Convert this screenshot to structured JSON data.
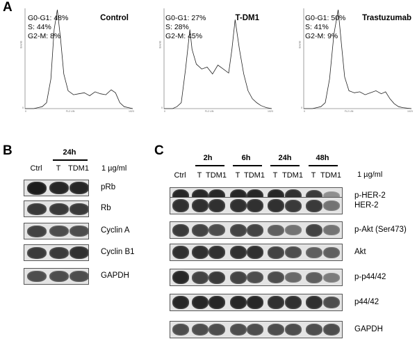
{
  "panels": {
    "a": "A",
    "b": "B",
    "c": "C"
  },
  "panel_a": {
    "histograms": [
      {
        "condition": "Control",
        "stats": [
          "G0-G1: 48%",
          "S: 44%",
          "G2-M: 8%"
        ],
        "y_axis_label": "Events",
        "x_axis_label": "FL2 LIN",
        "y_ticks": [
          "0"
        ],
        "x_ticks": [
          "0",
          "1023"
        ],
        "profile": [
          [
            0,
            0
          ],
          [
            8,
            0
          ],
          [
            12,
            1
          ],
          [
            16,
            2
          ],
          [
            20,
            6
          ],
          [
            24,
            30
          ],
          [
            27,
            80
          ],
          [
            30,
            100
          ],
          [
            33,
            70
          ],
          [
            36,
            35
          ],
          [
            40,
            18
          ],
          [
            45,
            14
          ],
          [
            50,
            15
          ],
          [
            55,
            16
          ],
          [
            60,
            13
          ],
          [
            65,
            17
          ],
          [
            70,
            15
          ],
          [
            75,
            14
          ],
          [
            80,
            19
          ],
          [
            84,
            16
          ],
          [
            88,
            6
          ],
          [
            92,
            2
          ],
          [
            96,
            1
          ],
          [
            100,
            0
          ]
        ]
      },
      {
        "condition": "T-DM1",
        "stats": [
          "G0-G1: 27%",
          "S: 28%",
          "G2-M: 45%"
        ],
        "y_axis_label": "Events",
        "x_axis_label": "FL2 LIN",
        "y_ticks": [
          "0"
        ],
        "x_ticks": [
          "0",
          "1023"
        ],
        "profile": [
          [
            0,
            0
          ],
          [
            8,
            0
          ],
          [
            12,
            2
          ],
          [
            16,
            6
          ],
          [
            20,
            40
          ],
          [
            24,
            80
          ],
          [
            26,
            60
          ],
          [
            30,
            45
          ],
          [
            35,
            40
          ],
          [
            40,
            42
          ],
          [
            45,
            35
          ],
          [
            50,
            44
          ],
          [
            55,
            40
          ],
          [
            60,
            36
          ],
          [
            63,
            60
          ],
          [
            66,
            90
          ],
          [
            70,
            60
          ],
          [
            74,
            35
          ],
          [
            78,
            18
          ],
          [
            82,
            10
          ],
          [
            86,
            6
          ],
          [
            90,
            3
          ],
          [
            95,
            1
          ],
          [
            100,
            0
          ]
        ]
      },
      {
        "condition": "Trastuzumab",
        "stats": [
          "G0-G1: 50%",
          "S: 41%",
          "G2-M: 9%"
        ],
        "y_axis_label": "Events",
        "x_axis_label": "FL2 LIN",
        "y_ticks": [
          "0"
        ],
        "x_ticks": [
          "0",
          "1023"
        ],
        "profile": [
          [
            0,
            0
          ],
          [
            8,
            0
          ],
          [
            12,
            1
          ],
          [
            16,
            2
          ],
          [
            20,
            6
          ],
          [
            24,
            30
          ],
          [
            28,
            75
          ],
          [
            32,
            100
          ],
          [
            35,
            65
          ],
          [
            38,
            32
          ],
          [
            42,
            18
          ],
          [
            47,
            16
          ],
          [
            52,
            17
          ],
          [
            57,
            14
          ],
          [
            62,
            16
          ],
          [
            67,
            18
          ],
          [
            72,
            15
          ],
          [
            76,
            17
          ],
          [
            80,
            10
          ],
          [
            84,
            5
          ],
          [
            88,
            2
          ],
          [
            92,
            1
          ],
          [
            100,
            0
          ]
        ]
      }
    ]
  },
  "panel_b": {
    "timepoint": "24h",
    "lanes": [
      "Ctrl",
      "T",
      "TDM1"
    ],
    "concentration": "1 µg/ml",
    "proteins": [
      {
        "label": "pRb",
        "intensity": [
          0.9,
          0.85,
          0.85
        ]
      },
      {
        "label": "Rb",
        "intensity": [
          0.75,
          0.75,
          0.75
        ]
      },
      {
        "label": "Cyclin A",
        "intensity": [
          0.7,
          0.65,
          0.65
        ]
      },
      {
        "label": "Cyclin B1",
        "intensity": [
          0.75,
          0.75,
          0.8
        ]
      },
      {
        "label": "GAPDH",
        "intensity": [
          0.65,
          0.65,
          0.65
        ]
      }
    ]
  },
  "panel_c": {
    "timepoints": [
      "2h",
      "6h",
      "24h",
      "48h"
    ],
    "lanes": [
      "Ctrl",
      "T",
      "TDM1",
      "T",
      "TDM1",
      "T",
      "TDM1",
      "T",
      "TDM1"
    ],
    "concentration": "1 µg/ml",
    "proteins": [
      {
        "label": "p-HER-2",
        "intensity": [
          0.85,
          0.85,
          0.85,
          0.85,
          0.85,
          0.85,
          0.8,
          0.75,
          0.3
        ]
      },
      {
        "label": "HER-2",
        "intensity": [
          0.8,
          0.8,
          0.8,
          0.8,
          0.8,
          0.8,
          0.75,
          0.75,
          0.45
        ]
      },
      {
        "label": "p-Akt   (Ser473)",
        "intensity": [
          0.75,
          0.7,
          0.65,
          0.7,
          0.7,
          0.55,
          0.45,
          0.7,
          0.45
        ]
      },
      {
        "label": "Akt",
        "intensity": [
          0.8,
          0.8,
          0.8,
          0.8,
          0.8,
          0.7,
          0.65,
          0.55,
          0.55
        ]
      },
      {
        "label": "p-p44/42",
        "intensity": [
          0.85,
          0.7,
          0.75,
          0.7,
          0.65,
          0.65,
          0.5,
          0.55,
          0.4
        ]
      },
      {
        "label": "p44/42",
        "intensity": [
          0.85,
          0.85,
          0.85,
          0.85,
          0.85,
          0.8,
          0.8,
          0.8,
          0.65
        ]
      },
      {
        "label": "GAPDH",
        "intensity": [
          0.65,
          0.65,
          0.65,
          0.65,
          0.65,
          0.65,
          0.65,
          0.65,
          0.65
        ]
      }
    ]
  }
}
